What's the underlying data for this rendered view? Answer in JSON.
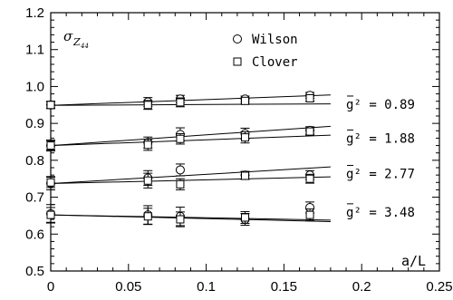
{
  "chart_data": {
    "type": "scatter",
    "ylabel": "σ",
    "ylabel_sub": "Z",
    "ylabel_subsub": "44",
    "xlabel": "a/L",
    "xlim": [
      0,
      0.25
    ],
    "ylim": [
      0.5,
      1.2
    ],
    "x_ticks": [
      "0",
      "0.05",
      "0.1",
      "0.15",
      "0.2",
      "0.25"
    ],
    "y_ticks": [
      "0.5",
      "0.6",
      "0.7",
      "0.8",
      "0.9",
      "1.0",
      "1.1",
      "1.2"
    ],
    "legend": {
      "position": "top-center",
      "entries": [
        {
          "marker": "circle",
          "label": "Wilson"
        },
        {
          "marker": "square",
          "label": "Clover"
        }
      ]
    },
    "series": [
      {
        "name": "Wilson",
        "marker": "circle",
        "groups": [
          {
            "points": [
              [
                0,
                0.95,
                0.01
              ],
              [
                0.0625,
                0.958,
                0.012
              ],
              [
                0.0833,
                0.966,
                0.01
              ],
              [
                0.125,
                0.966,
                0.008
              ],
              [
                0.1667,
                0.976,
                0.008
              ]
            ]
          },
          {
            "points": [
              [
                0,
                0.84,
                0.015
              ],
              [
                0.0625,
                0.848,
                0.015
              ],
              [
                0.0833,
                0.87,
                0.018
              ],
              [
                0.125,
                0.872,
                0.015
              ],
              [
                0.1667,
                0.881,
                0.01
              ]
            ]
          },
          {
            "points": [
              [
                0,
                0.738,
                0.018
              ],
              [
                0.0625,
                0.752,
                0.02
              ],
              [
                0.0833,
                0.774,
                0.016
              ],
              [
                0.125,
                0.76,
                0.01
              ],
              [
                0.1667,
                0.76,
                0.012
              ]
            ]
          },
          {
            "points": [
              [
                0,
                0.655,
                0.025
              ],
              [
                0.0625,
                0.652,
                0.025
              ],
              [
                0.0833,
                0.648,
                0.025
              ],
              [
                0.125,
                0.64,
                0.016
              ],
              [
                0.1667,
                0.672,
                0.015
              ]
            ]
          }
        ]
      },
      {
        "name": "Clover",
        "marker": "square",
        "groups": [
          {
            "points": [
              [
                0,
                0.95,
                0.008
              ],
              [
                0.0625,
                0.95,
                0.012
              ],
              [
                0.0833,
                0.957,
                0.012
              ],
              [
                0.125,
                0.961,
                0.008
              ],
              [
                0.1667,
                0.968,
                0.008
              ]
            ]
          },
          {
            "points": [
              [
                0,
                0.84,
                0.012
              ],
              [
                0.0625,
                0.842,
                0.015
              ],
              [
                0.0833,
                0.858,
                0.014
              ],
              [
                0.125,
                0.862,
                0.015
              ],
              [
                0.1667,
                0.878,
                0.01
              ]
            ]
          },
          {
            "points": [
              [
                0,
                0.74,
                0.014
              ],
              [
                0.0625,
                0.745,
                0.02
              ],
              [
                0.0833,
                0.735,
                0.015
              ],
              [
                0.125,
                0.758,
                0.01
              ],
              [
                0.1667,
                0.75,
                0.012
              ]
            ]
          },
          {
            "points": [
              [
                0,
                0.652,
                0.02
              ],
              [
                0.0625,
                0.648,
                0.022
              ],
              [
                0.0833,
                0.64,
                0.02
              ],
              [
                0.125,
                0.645,
                0.016
              ],
              [
                0.1667,
                0.652,
                0.016
              ]
            ]
          }
        ]
      }
    ],
    "fit_lines": [
      {
        "x": [
          0,
          0.18
        ],
        "y": [
          0.949,
          0.977
        ]
      },
      {
        "x": [
          0,
          0.18
        ],
        "y": [
          0.949,
          0.953
        ]
      },
      {
        "x": [
          0,
          0.18
        ],
        "y": [
          0.84,
          0.892
        ]
      },
      {
        "x": [
          0,
          0.18
        ],
        "y": [
          0.84,
          0.868
        ]
      },
      {
        "x": [
          0,
          0.18
        ],
        "y": [
          0.737,
          0.782
        ]
      },
      {
        "x": [
          0,
          0.18
        ],
        "y": [
          0.737,
          0.755
        ]
      },
      {
        "x": [
          0,
          0.18
        ],
        "y": [
          0.652,
          0.634
        ]
      },
      {
        "x": [
          0,
          0.18
        ],
        "y": [
          0.652,
          0.638
        ]
      }
    ],
    "annotations": [
      {
        "text": "g² = 0.89",
        "x": 0.19,
        "y": 0.952
      },
      {
        "text": "g² = 1.88",
        "x": 0.19,
        "y": 0.86
      },
      {
        "text": "g² = 2.77",
        "x": 0.19,
        "y": 0.764
      },
      {
        "text": "g² = 3.48",
        "x": 0.19,
        "y": 0.66
      }
    ],
    "grid": false
  }
}
